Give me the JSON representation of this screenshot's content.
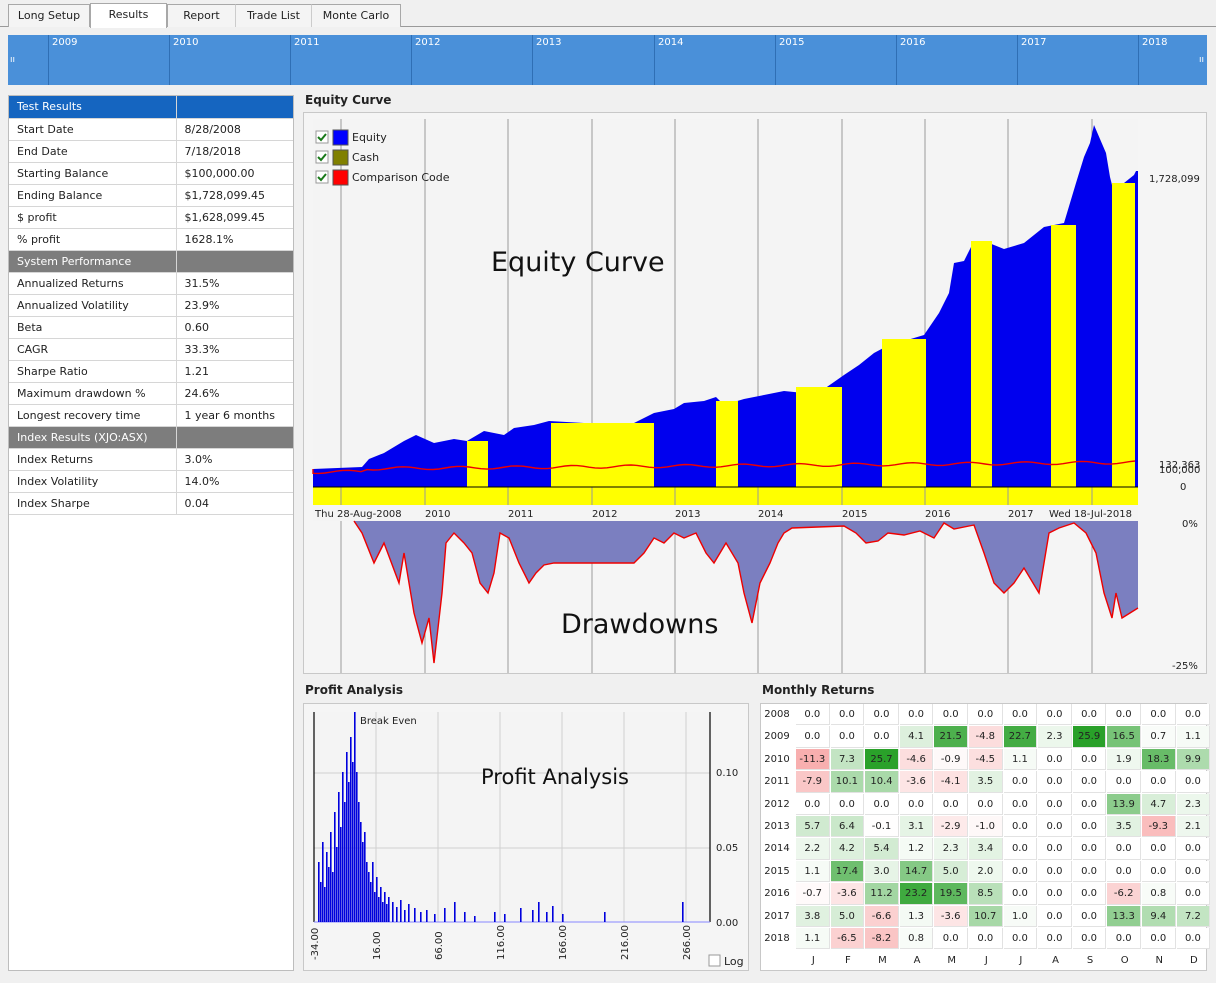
{
  "tabs": [
    {
      "label": "Long Setup",
      "active": false
    },
    {
      "label": "Results",
      "active": true
    },
    {
      "label": "Report",
      "active": false
    },
    {
      "label": "Trade List",
      "active": false
    },
    {
      "label": "Monte Carlo",
      "active": false
    }
  ],
  "timeline": {
    "years": [
      "2009",
      "2010",
      "2011",
      "2012",
      "2013",
      "2014",
      "2015",
      "2016",
      "2017",
      "2018"
    ],
    "left_handle": "ıı",
    "right_handle": "ıı"
  },
  "results": {
    "sections": [
      {
        "title": "Test Results",
        "style": "blue",
        "rows": [
          {
            "label": "Start Date",
            "value": "8/28/2008"
          },
          {
            "label": "End Date",
            "value": "7/18/2018"
          },
          {
            "label": "Starting Balance",
            "value": "$100,000.00"
          },
          {
            "label": "Ending Balance",
            "value": "$1,728,099.45"
          },
          {
            "label": "$ profit",
            "value": "$1,628,099.45"
          },
          {
            "label": "% profit",
            "value": "1628.1%"
          }
        ]
      },
      {
        "title": "System Performance",
        "style": "grey",
        "rows": [
          {
            "label": "Annualized Returns",
            "value": "31.5%"
          },
          {
            "label": "Annualized Volatility",
            "value": "23.9%"
          },
          {
            "label": "Beta",
            "value": "0.60"
          },
          {
            "label": "CAGR",
            "value": "33.3%"
          },
          {
            "label": "Sharpe Ratio",
            "value": "1.21"
          },
          {
            "label": "Maximum drawdown %",
            "value": "24.6%"
          },
          {
            "label": "Longest recovery time",
            "value": "1 year 6 months"
          }
        ]
      },
      {
        "title": "Index Results (XJO:ASX)",
        "style": "grey",
        "rows": [
          {
            "label": "Index Returns",
            "value": "3.0%"
          },
          {
            "label": "Index Volatility",
            "value": "14.0%"
          },
          {
            "label": "Index Sharpe",
            "value": "0.04"
          }
        ]
      }
    ]
  },
  "equity": {
    "section_title": "Equity Curve",
    "overlay_title": "Equity Curve",
    "drawdown_overlay_title": "Drawdowns",
    "legend": [
      {
        "label": "Equity",
        "color": "#0000ff",
        "checked": true
      },
      {
        "label": "Cash",
        "color": "#808000",
        "checked": true
      },
      {
        "label": "Comparison Code",
        "color": "#ff0000",
        "checked": true
      }
    ],
    "right_labels": {
      "end_value": "1,728,099",
      "comparison_value": "132,363",
      "start_value": "100,000",
      "zero": "0"
    },
    "x_labels": [
      "Thu 28-Aug-2008",
      "2010",
      "2011",
      "2012",
      "2013",
      "2014",
      "2015",
      "2016",
      "2017",
      "Wed 18-Jul-2018"
    ],
    "drawdown_labels": {
      "top": "0%",
      "bottom": "-25%"
    }
  },
  "profit_analysis": {
    "section_title": "Profit Analysis",
    "overlay_title": "Profit Analysis",
    "break_even_label": "Break Even",
    "y_labels": [
      "0.10",
      "0.05",
      "0.00"
    ],
    "x_labels": [
      "-34.00",
      "16.00",
      "66.00",
      "116.00",
      "166.00",
      "216.00",
      "266.00"
    ],
    "log_label": "Log"
  },
  "monthly_returns": {
    "section_title": "Monthly Returns",
    "months": [
      "J",
      "F",
      "M",
      "A",
      "M",
      "J",
      "J",
      "A",
      "S",
      "O",
      "N",
      "D"
    ],
    "rows": [
      {
        "year": "2008",
        "values": [
          "0.0",
          "0.0",
          "0.0",
          "0.0",
          "0.0",
          "0.0",
          "0.0",
          "0.0",
          "0.0",
          "0.0",
          "0.0",
          "0.0"
        ]
      },
      {
        "year": "2009",
        "values": [
          "0.0",
          "0.0",
          "0.0",
          "4.1",
          "21.5",
          "-4.8",
          "22.7",
          "2.3",
          "25.9",
          "16.5",
          "0.7",
          "1.1"
        ]
      },
      {
        "year": "2010",
        "values": [
          "-11.3",
          "7.3",
          "25.7",
          "-4.6",
          "-0.9",
          "-4.5",
          "1.1",
          "0.0",
          "0.0",
          "1.9",
          "18.3",
          "9.9"
        ]
      },
      {
        "year": "2011",
        "values": [
          "-7.9",
          "10.1",
          "10.4",
          "-3.6",
          "-4.1",
          "3.5",
          "0.0",
          "0.0",
          "0.0",
          "0.0",
          "0.0",
          "0.0"
        ]
      },
      {
        "year": "2012",
        "values": [
          "0.0",
          "0.0",
          "0.0",
          "0.0",
          "0.0",
          "0.0",
          "0.0",
          "0.0",
          "0.0",
          "13.9",
          "4.7",
          "2.3"
        ]
      },
      {
        "year": "2013",
        "values": [
          "5.7",
          "6.4",
          "-0.1",
          "3.1",
          "-2.9",
          "-1.0",
          "0.0",
          "0.0",
          "0.0",
          "3.5",
          "-9.3",
          "2.1"
        ]
      },
      {
        "year": "2014",
        "values": [
          "2.2",
          "4.2",
          "5.4",
          "1.2",
          "2.3",
          "3.4",
          "0.0",
          "0.0",
          "0.0",
          "0.0",
          "0.0",
          "0.0"
        ]
      },
      {
        "year": "2015",
        "values": [
          "1.1",
          "17.4",
          "3.0",
          "14.7",
          "5.0",
          "2.0",
          "0.0",
          "0.0",
          "0.0",
          "0.0",
          "0.0",
          "0.0"
        ]
      },
      {
        "year": "2016",
        "values": [
          "-0.7",
          "-3.6",
          "11.2",
          "23.2",
          "19.5",
          "8.5",
          "0.0",
          "0.0",
          "0.0",
          "-6.2",
          "0.8",
          "0.0"
        ]
      },
      {
        "year": "2017",
        "values": [
          "3.8",
          "5.0",
          "-6.6",
          "1.3",
          "-3.6",
          "10.7",
          "1.0",
          "0.0",
          "0.0",
          "13.3",
          "9.4",
          "7.2"
        ]
      },
      {
        "year": "2018",
        "values": [
          "1.1",
          "-6.5",
          "-8.2",
          "0.8",
          "0.0",
          "0.0",
          "0.0",
          "0.0",
          "0.0",
          "0.0",
          "0.0",
          "0.0"
        ]
      }
    ]
  }
}
